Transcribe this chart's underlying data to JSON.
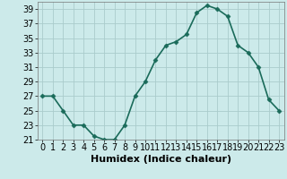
{
  "x": [
    0,
    1,
    2,
    3,
    4,
    5,
    6,
    7,
    8,
    9,
    10,
    11,
    12,
    13,
    14,
    15,
    16,
    17,
    18,
    19,
    20,
    21,
    22,
    23
  ],
  "y": [
    27,
    27,
    25,
    23,
    23,
    21.5,
    21,
    21,
    23,
    27,
    29,
    32,
    34,
    34.5,
    35.5,
    38.5,
    39.5,
    39,
    38,
    34,
    33,
    31,
    26.5,
    25
  ],
  "line_color": "#1a6b5a",
  "marker": "D",
  "marker_size": 2.5,
  "background_color": "#cceaea",
  "grid_color": "#aacccc",
  "xlabel": "Humidex (Indice chaleur)",
  "xlim": [
    -0.5,
    23.5
  ],
  "ylim": [
    21,
    40
  ],
  "yticks": [
    21,
    23,
    25,
    27,
    29,
    31,
    33,
    35,
    37,
    39
  ],
  "xticks": [
    0,
    1,
    2,
    3,
    4,
    5,
    6,
    7,
    8,
    9,
    10,
    11,
    12,
    13,
    14,
    15,
    16,
    17,
    18,
    19,
    20,
    21,
    22,
    23
  ],
  "xlabel_fontsize": 8,
  "tick_fontsize": 7,
  "line_width": 1.2
}
